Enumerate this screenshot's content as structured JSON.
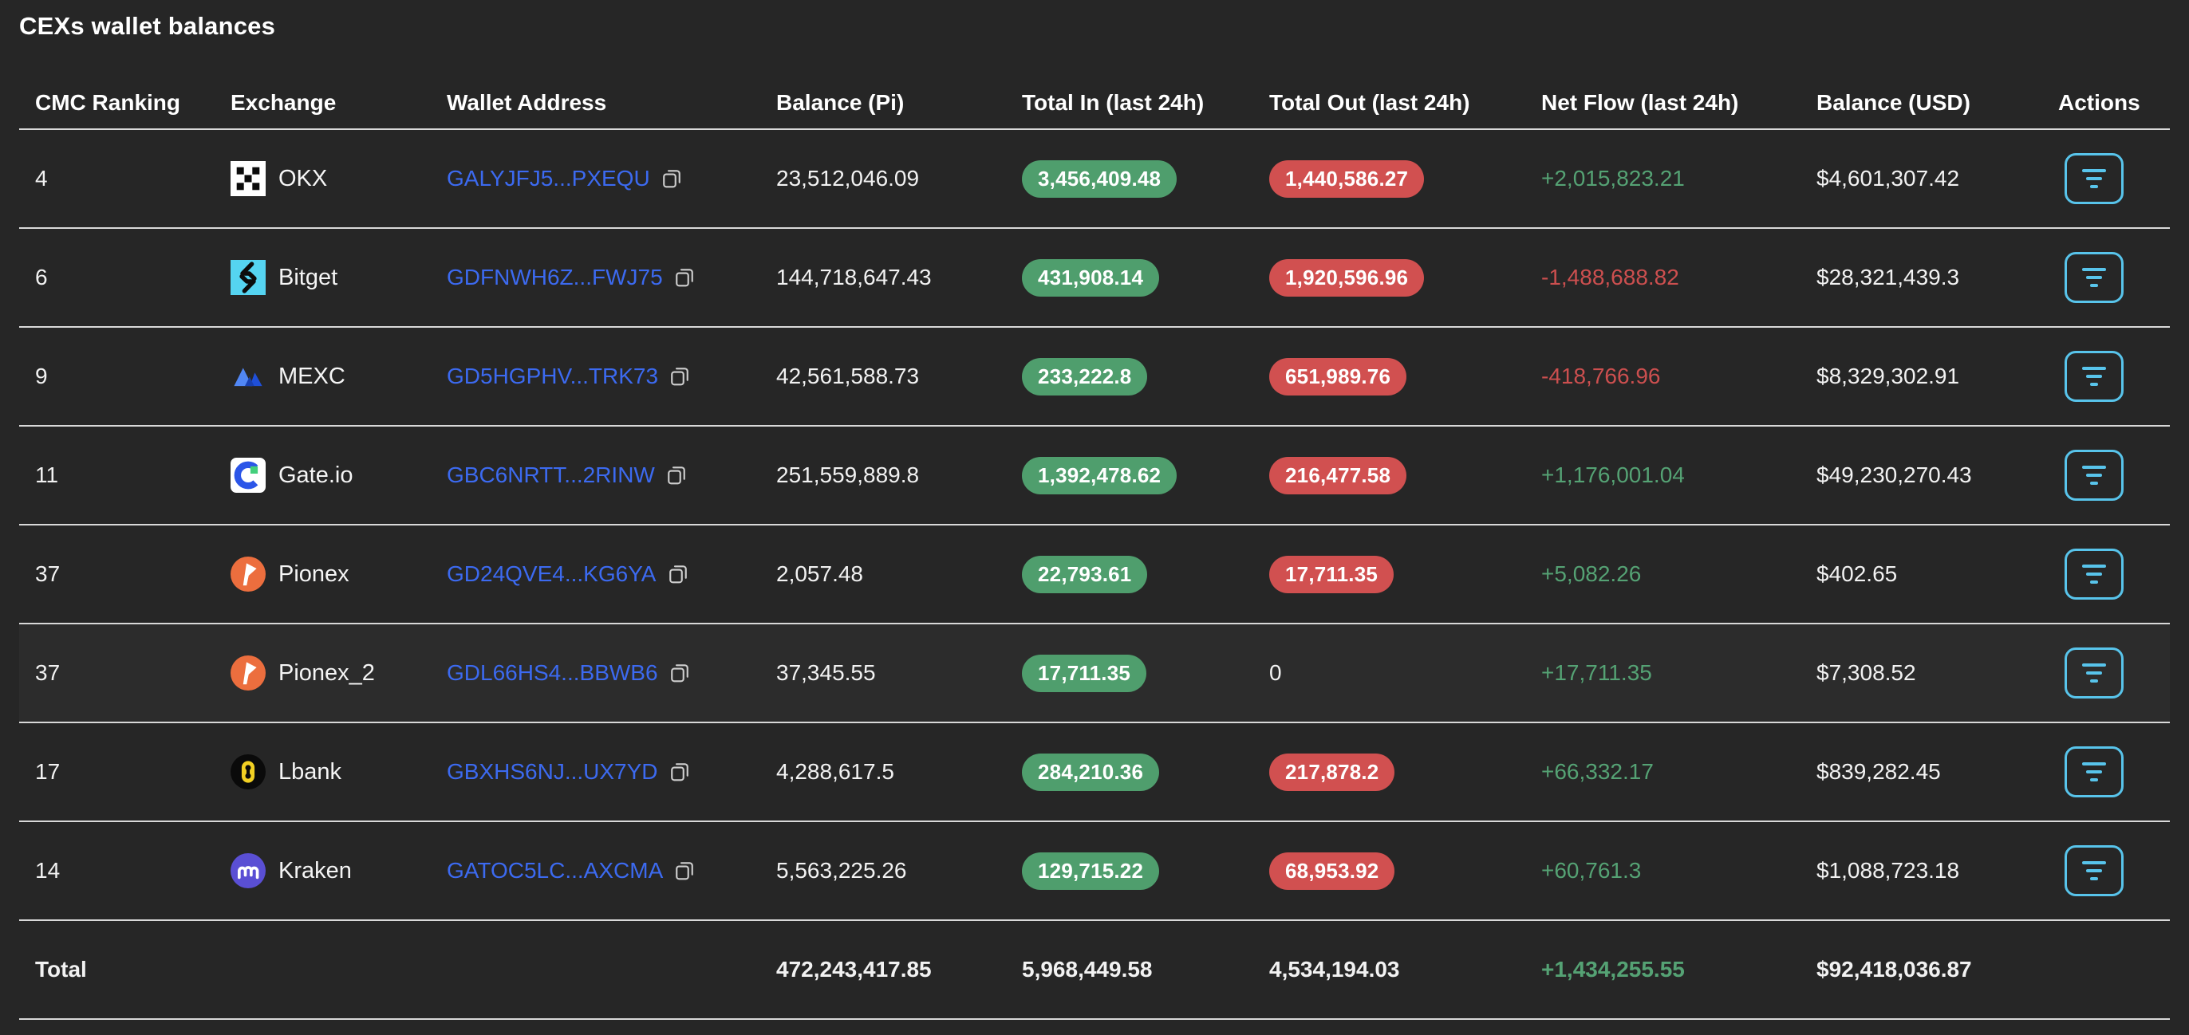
{
  "page": {
    "title": "CEXs wallet balances"
  },
  "table": {
    "columns": [
      "CMC Ranking",
      "Exchange",
      "Wallet Address",
      "Balance (Pi)",
      "Total In (last 24h)",
      "Total Out (last 24h)",
      "Net Flow (last 24h)",
      "Balance (USD)",
      "Actions"
    ],
    "copy_icon": "copy-icon",
    "actions_icon": "filter-lines-icon",
    "rows": [
      {
        "ranking": "4",
        "exchange": "OKX",
        "logo": "okx-logo",
        "address": "GALYJFJ5...PXEQU",
        "balance_pi": "23,512,046.09",
        "total_in": "3,456,409.48",
        "total_out": "1,440,586.27",
        "total_out_badge": true,
        "net_flow": "+2,015,823.21",
        "balance_usd": "$4,601,307.42",
        "highlighted": false
      },
      {
        "ranking": "6",
        "exchange": "Bitget",
        "logo": "bitget-logo",
        "address": "GDFNWH6Z...FWJ75",
        "balance_pi": "144,718,647.43",
        "total_in": "431,908.14",
        "total_out": "1,920,596.96",
        "total_out_badge": true,
        "net_flow": "-1,488,688.82",
        "balance_usd": "$28,321,439.3",
        "highlighted": false
      },
      {
        "ranking": "9",
        "exchange": "MEXC",
        "logo": "mexc-logo",
        "address": "GD5HGPHV...TRK73",
        "balance_pi": "42,561,588.73",
        "total_in": "233,222.8",
        "total_out": "651,989.76",
        "total_out_badge": true,
        "net_flow": "-418,766.96",
        "balance_usd": "$8,329,302.91",
        "highlighted": false
      },
      {
        "ranking": "11",
        "exchange": "Gate.io",
        "logo": "gateio-logo",
        "address": "GBC6NRTT...2RINW",
        "balance_pi": "251,559,889.8",
        "total_in": "1,392,478.62",
        "total_out": "216,477.58",
        "total_out_badge": true,
        "net_flow": "+1,176,001.04",
        "balance_usd": "$49,230,270.43",
        "highlighted": false
      },
      {
        "ranking": "37",
        "exchange": "Pionex",
        "logo": "pionex-logo",
        "address": "GD24QVE4...KG6YA",
        "balance_pi": "2,057.48",
        "total_in": "22,793.61",
        "total_out": "17,711.35",
        "total_out_badge": true,
        "net_flow": "+5,082.26",
        "balance_usd": "$402.65",
        "highlighted": false
      },
      {
        "ranking": "37",
        "exchange": "Pionex_2",
        "logo": "pionex-logo",
        "address": "GDL66HS4...BBWB6",
        "balance_pi": "37,345.55",
        "total_in": "17,711.35",
        "total_out": "0",
        "total_out_badge": false,
        "net_flow": "+17,711.35",
        "balance_usd": "$7,308.52",
        "highlighted": true
      },
      {
        "ranking": "17",
        "exchange": "Lbank",
        "logo": "lbank-logo",
        "address": "GBXHS6NJ...UX7YD",
        "balance_pi": "4,288,617.5",
        "total_in": "284,210.36",
        "total_out": "217,878.2",
        "total_out_badge": true,
        "net_flow": "+66,332.17",
        "balance_usd": "$839,282.45",
        "highlighted": false
      },
      {
        "ranking": "14",
        "exchange": "Kraken",
        "logo": "kraken-logo",
        "address": "GATOC5LC...AXCMA",
        "balance_pi": "5,563,225.26",
        "total_in": "129,715.22",
        "total_out": "68,953.92",
        "total_out_badge": true,
        "net_flow": "+60,761.3",
        "balance_usd": "$1,088,723.18",
        "highlighted": false
      }
    ],
    "total": {
      "label": "Total",
      "balance_pi": "472,243,417.85",
      "total_in": "5,968,449.58",
      "total_out": "4,534,194.03",
      "net_flow": "+1,434,255.55",
      "balance_usd": "$92,418,036.87"
    }
  },
  "colors": {
    "background": "#262626",
    "row_divider": "#d9d9d9",
    "text_primary": "#f2f2f2",
    "address_link": "#3c6af0",
    "badge_green": "#4f9e6d",
    "badge_red": "#d15050",
    "net_positive": "#55a274",
    "net_negative": "#cc4f4f",
    "actions_accent": "#58c4eb"
  }
}
